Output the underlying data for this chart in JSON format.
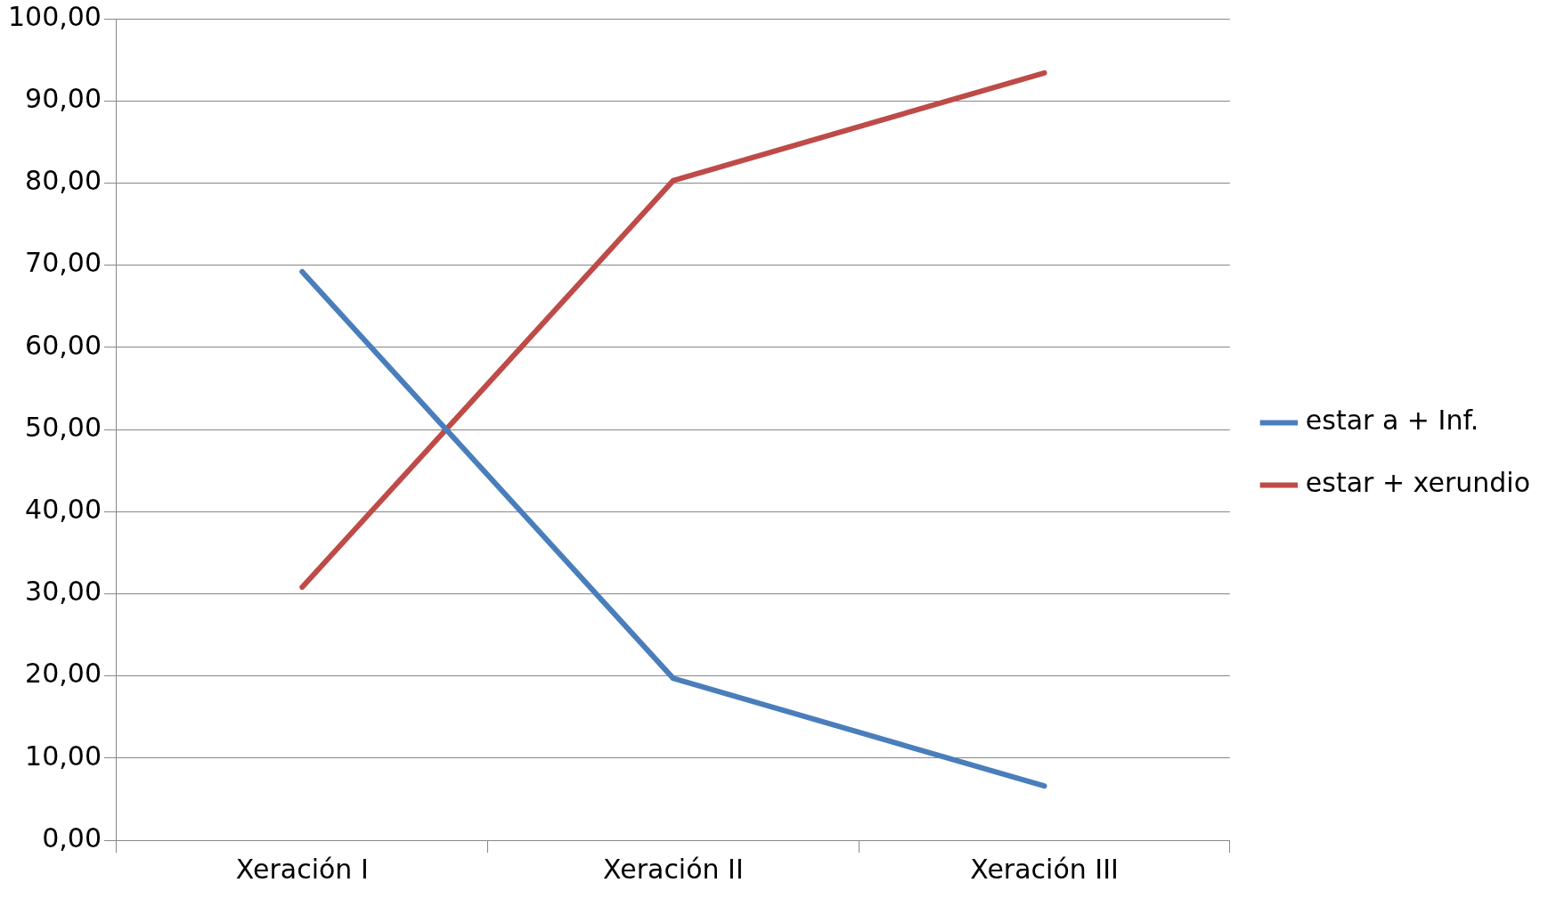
{
  "chart_data": {
    "type": "line",
    "categories": [
      "Xeración I",
      "Xeración II",
      "Xeración III"
    ],
    "series": [
      {
        "name": "estar a + Inf.",
        "color": "#4a7ebb",
        "values": [
          69.2,
          19.7,
          6.6
        ]
      },
      {
        "name": "estar + xerundio",
        "color": "#be4b48",
        "values": [
          30.8,
          80.3,
          93.4
        ]
      }
    ],
    "ylim": [
      0,
      100
    ],
    "yticks": [
      {
        "value": 0,
        "label": "0,00"
      },
      {
        "value": 10,
        "label": "10,00"
      },
      {
        "value": 20,
        "label": "20,00"
      },
      {
        "value": 30,
        "label": "30,00"
      },
      {
        "value": 40,
        "label": "40,00"
      },
      {
        "value": 50,
        "label": "50,00"
      },
      {
        "value": 60,
        "label": "60,00"
      },
      {
        "value": 70,
        "label": "70,00"
      },
      {
        "value": 80,
        "label": "80,00"
      },
      {
        "value": 90,
        "label": "90,00"
      },
      {
        "value": 100,
        "label": "100,00"
      }
    ],
    "grid": "y",
    "legend": "right",
    "marker": "none",
    "line_style": "solid"
  }
}
